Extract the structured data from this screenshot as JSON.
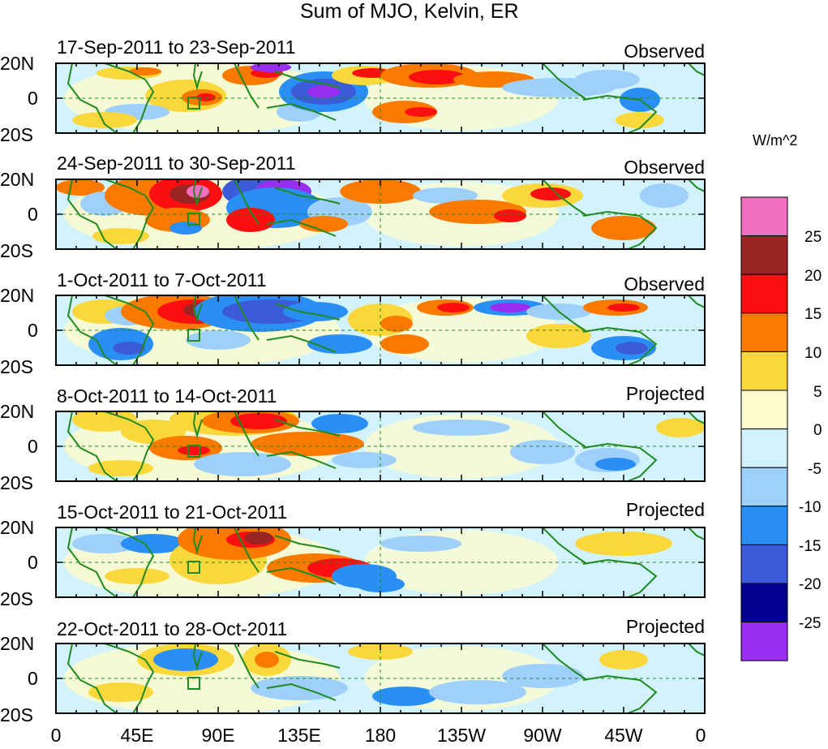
{
  "figure": {
    "title": "Sum of MJO, Kelvin, ER",
    "colorbar": {
      "units": "W/m^2",
      "levels": [
        "25",
        "20",
        "15",
        "10",
        "5",
        "0",
        "-5",
        "-10",
        "-15",
        "-20",
        "-25"
      ],
      "colors": [
        "#f06fc0",
        "#9b2424",
        "#fa1010",
        "#fa7a00",
        "#fad73a",
        "#fcfccd",
        "#d2f2fc",
        "#9fd0fc",
        "#2a8ff5",
        "#3b5bd9",
        "#00008c",
        "#9a2ef0"
      ]
    },
    "lat_labels": [
      "20N",
      "0",
      "20S"
    ],
    "lon_labels": [
      "0",
      "45E",
      "90E",
      "135E",
      "180",
      "135W",
      "90W",
      "45W",
      "0"
    ],
    "panels": [
      {
        "period": "17-Sep-2011 to 23-Sep-2011",
        "status": "Observed"
      },
      {
        "period": "24-Sep-2011 to 30-Sep-2011",
        "status": "Observed"
      },
      {
        "period": "1-Oct-2011 to 7-Oct-2011",
        "status": "Observed"
      },
      {
        "period": "8-Oct-2011 to 14-Oct-2011",
        "status": "Projected"
      },
      {
        "period": "15-Oct-2011 to 21-Oct-2011",
        "status": "Projected"
      },
      {
        "period": "22-Oct-2011 to 28-Oct-2011",
        "status": "Projected"
      }
    ],
    "line_colors": {
      "coast": "#1f8a1f",
      "frame": "#000000"
    }
  }
}
